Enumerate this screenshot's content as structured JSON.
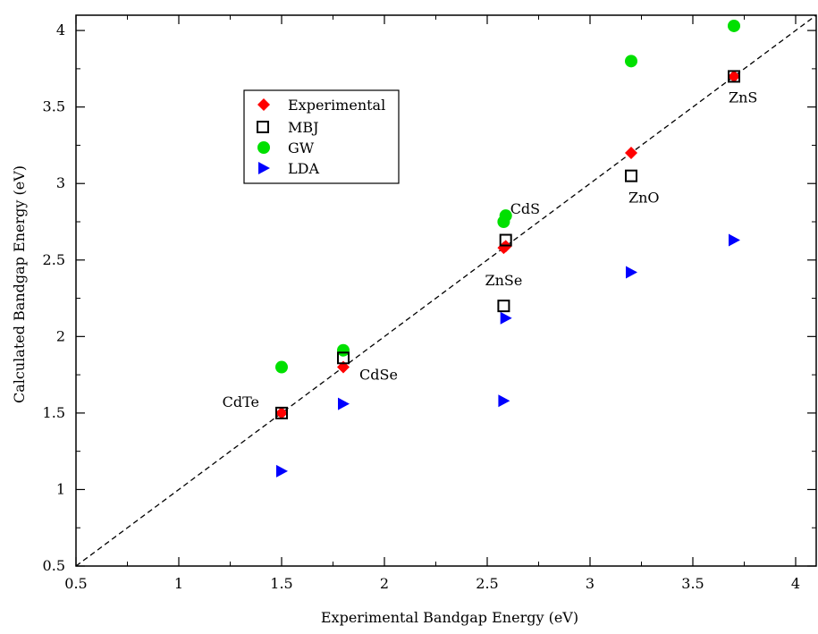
{
  "chart_data": {
    "type": "scatter",
    "xlabel": "Experimental Bandgap Energy (eV)",
    "ylabel": "Calculated Bandgap Energy (eV)",
    "xlim": [
      0.5,
      4.1
    ],
    "ylim": [
      0.5,
      4.1
    ],
    "x_ticks": [
      0.5,
      1,
      1.5,
      2,
      2.5,
      3,
      3.5,
      4
    ],
    "y_ticks": [
      0.5,
      1,
      1.5,
      2,
      2.5,
      3,
      3.5,
      4
    ],
    "x_tick_labels": [
      "0.5",
      "1",
      "1.5",
      "2",
      "2.5",
      "3",
      "3.5",
      "4"
    ],
    "y_tick_labels": [
      "0.5",
      "1",
      "1.5",
      "2",
      "2.5",
      "3",
      "3.5",
      "4"
    ],
    "grid": false,
    "legend_position": "top-left",
    "reference_line": {
      "style": "dashed",
      "color": "#000000",
      "x": [
        0.5,
        4.1
      ],
      "y": [
        0.5,
        4.1
      ]
    },
    "series": [
      {
        "name": "Experimental",
        "marker": "diamond",
        "color": "#ff0000",
        "points": [
          {
            "x": 1.5,
            "y": 1.5
          },
          {
            "x": 1.8,
            "y": 1.8
          },
          {
            "x": 2.58,
            "y": 2.58
          },
          {
            "x": 2.59,
            "y": 2.59
          },
          {
            "x": 3.2,
            "y": 3.2
          },
          {
            "x": 3.7,
            "y": 3.7
          }
        ]
      },
      {
        "name": "MBJ",
        "marker": "square-open",
        "color": "#000000",
        "points": [
          {
            "x": 1.5,
            "y": 1.5
          },
          {
            "x": 1.8,
            "y": 1.86
          },
          {
            "x": 2.58,
            "y": 2.2
          },
          {
            "x": 2.59,
            "y": 2.63
          },
          {
            "x": 3.2,
            "y": 3.05
          },
          {
            "x": 3.7,
            "y": 3.7
          }
        ]
      },
      {
        "name": "GW",
        "marker": "circle",
        "color": "#00e000",
        "points": [
          {
            "x": 1.5,
            "y": 1.8
          },
          {
            "x": 1.8,
            "y": 1.91
          },
          {
            "x": 2.58,
            "y": 2.75
          },
          {
            "x": 2.59,
            "y": 2.79
          },
          {
            "x": 3.2,
            "y": 3.8
          },
          {
            "x": 3.7,
            "y": 4.03
          }
        ]
      },
      {
        "name": "LDA",
        "marker": "triangle-right",
        "color": "#0000ff",
        "points": [
          {
            "x": 1.5,
            "y": 1.12
          },
          {
            "x": 1.8,
            "y": 1.56
          },
          {
            "x": 2.58,
            "y": 1.58
          },
          {
            "x": 2.59,
            "y": 2.12
          },
          {
            "x": 3.2,
            "y": 2.42
          },
          {
            "x": 3.7,
            "y": 2.63
          }
        ]
      }
    ],
    "annotations": [
      {
        "text": "CdTe",
        "x": 1.5,
        "y": 1.5
      },
      {
        "text": "CdSe",
        "x": 1.8,
        "y": 1.8
      },
      {
        "text": "ZnSe",
        "x": 2.58,
        "y": 2.58
      },
      {
        "text": "CdS",
        "x": 2.59,
        "y": 2.79
      },
      {
        "text": "ZnO",
        "x": 3.2,
        "y": 3.05
      },
      {
        "text": "ZnS",
        "x": 3.7,
        "y": 3.7
      }
    ]
  }
}
